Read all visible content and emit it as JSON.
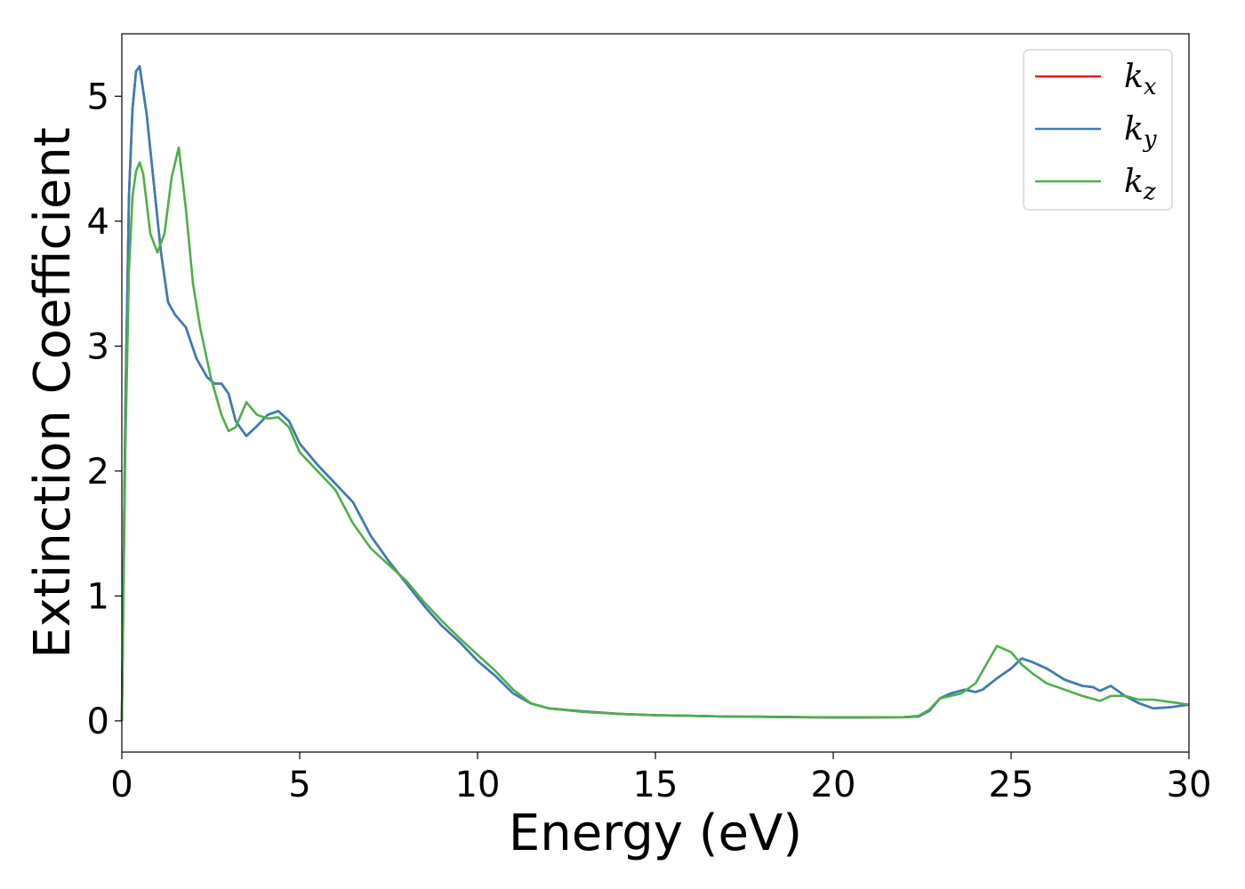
{
  "chart_data": {
    "type": "line",
    "xlabel": "Energy (eV)",
    "ylabel": "Extinction Coefficient",
    "xlim": [
      0,
      30
    ],
    "ylim": [
      -0.25,
      5.5
    ],
    "xticks": [
      0,
      5,
      10,
      15,
      20,
      25,
      30
    ],
    "yticks": [
      0,
      1,
      2,
      3,
      4,
      5
    ],
    "grid": false,
    "legend_position": "top-right",
    "series": [
      {
        "name": "k_x",
        "label_main": "k",
        "label_sub": "x",
        "color": "#e41a1c",
        "x": [
          0,
          0.1,
          0.2,
          0.3,
          0.4,
          0.5,
          0.7,
          0.9,
          1.1,
          1.3,
          1.5,
          1.8,
          2.1,
          2.4,
          2.6,
          2.8,
          3.0,
          3.2,
          3.5,
          3.8,
          4.1,
          4.4,
          4.7,
          5.0,
          5.5,
          6.0,
          6.5,
          7.0,
          7.5,
          8.0,
          8.5,
          9.0,
          9.5,
          10.0,
          10.5,
          11.0,
          11.5,
          12.0,
          13.0,
          14.0,
          15.0,
          16.0,
          17.0,
          18.0,
          19.0,
          20.0,
          21.0,
          22.0,
          22.4,
          22.7,
          23.0,
          23.3,
          23.7,
          24.0,
          24.2,
          24.6,
          25.0,
          25.3,
          25.6,
          26.0,
          26.5,
          27.0,
          27.3,
          27.5,
          27.8,
          28.2,
          28.6,
          29.0,
          29.5,
          30.0
        ],
        "y": [
          0,
          2.5,
          4.2,
          4.9,
          5.2,
          5.24,
          4.85,
          4.3,
          3.75,
          3.35,
          3.25,
          3.15,
          2.9,
          2.75,
          2.7,
          2.7,
          2.62,
          2.4,
          2.28,
          2.36,
          2.45,
          2.48,
          2.4,
          2.22,
          2.05,
          1.9,
          1.75,
          1.48,
          1.28,
          1.1,
          0.92,
          0.76,
          0.63,
          0.48,
          0.36,
          0.22,
          0.14,
          0.1,
          0.075,
          0.055,
          0.045,
          0.04,
          0.035,
          0.033,
          0.03,
          0.028,
          0.028,
          0.03,
          0.035,
          0.08,
          0.18,
          0.22,
          0.25,
          0.23,
          0.25,
          0.34,
          0.42,
          0.5,
          0.47,
          0.42,
          0.33,
          0.28,
          0.27,
          0.24,
          0.28,
          0.2,
          0.14,
          0.1,
          0.11,
          0.13
        ]
      },
      {
        "name": "k_y",
        "label_main": "k",
        "label_sub": "y",
        "color": "#377eb8",
        "x": [
          0,
          0.1,
          0.2,
          0.3,
          0.4,
          0.5,
          0.7,
          0.9,
          1.1,
          1.3,
          1.5,
          1.8,
          2.1,
          2.4,
          2.6,
          2.8,
          3.0,
          3.2,
          3.5,
          3.8,
          4.1,
          4.4,
          4.7,
          5.0,
          5.5,
          6.0,
          6.5,
          7.0,
          7.5,
          8.0,
          8.5,
          9.0,
          9.5,
          10.0,
          10.5,
          11.0,
          11.5,
          12.0,
          13.0,
          14.0,
          15.0,
          16.0,
          17.0,
          18.0,
          19.0,
          20.0,
          21.0,
          22.0,
          22.4,
          22.7,
          23.0,
          23.3,
          23.7,
          24.0,
          24.2,
          24.6,
          25.0,
          25.3,
          25.6,
          26.0,
          26.5,
          27.0,
          27.3,
          27.5,
          27.8,
          28.2,
          28.6,
          29.0,
          29.5,
          30.0
        ],
        "y": [
          0,
          2.5,
          4.2,
          4.9,
          5.2,
          5.24,
          4.85,
          4.3,
          3.75,
          3.35,
          3.25,
          3.15,
          2.9,
          2.75,
          2.7,
          2.7,
          2.62,
          2.4,
          2.28,
          2.36,
          2.45,
          2.48,
          2.4,
          2.22,
          2.05,
          1.9,
          1.75,
          1.48,
          1.28,
          1.1,
          0.92,
          0.76,
          0.63,
          0.48,
          0.36,
          0.22,
          0.14,
          0.1,
          0.075,
          0.055,
          0.045,
          0.04,
          0.035,
          0.033,
          0.03,
          0.028,
          0.028,
          0.03,
          0.035,
          0.08,
          0.18,
          0.22,
          0.25,
          0.23,
          0.25,
          0.34,
          0.42,
          0.5,
          0.47,
          0.42,
          0.33,
          0.28,
          0.27,
          0.24,
          0.28,
          0.2,
          0.14,
          0.1,
          0.11,
          0.13
        ]
      },
      {
        "name": "k_z",
        "label_main": "k",
        "label_sub": "z",
        "color": "#4daf4a",
        "x": [
          0,
          0.1,
          0.2,
          0.3,
          0.4,
          0.5,
          0.6,
          0.8,
          1.0,
          1.2,
          1.4,
          1.6,
          1.8,
          2.0,
          2.2,
          2.5,
          2.8,
          3.0,
          3.2,
          3.5,
          3.8,
          4.1,
          4.4,
          4.7,
          5.0,
          5.5,
          6.0,
          6.5,
          7.0,
          7.5,
          8.0,
          8.5,
          9.0,
          9.5,
          10.0,
          10.5,
          11.0,
          11.5,
          12.0,
          13.0,
          14.0,
          15.0,
          16.0,
          17.0,
          18.0,
          19.0,
          20.0,
          21.0,
          22.0,
          22.4,
          22.7,
          23.0,
          23.3,
          23.6,
          24.0,
          24.3,
          24.6,
          25.0,
          25.3,
          25.6,
          26.0,
          26.5,
          27.0,
          27.5,
          27.8,
          28.2,
          28.6,
          29.0,
          29.5,
          30.0
        ],
        "y": [
          0,
          2.2,
          3.6,
          4.2,
          4.4,
          4.47,
          4.38,
          3.9,
          3.75,
          3.9,
          4.35,
          4.59,
          4.1,
          3.5,
          3.15,
          2.75,
          2.45,
          2.32,
          2.35,
          2.55,
          2.45,
          2.42,
          2.43,
          2.35,
          2.15,
          2.0,
          1.85,
          1.58,
          1.38,
          1.25,
          1.12,
          0.95,
          0.8,
          0.66,
          0.53,
          0.4,
          0.25,
          0.14,
          0.1,
          0.07,
          0.055,
          0.045,
          0.04,
          0.035,
          0.032,
          0.03,
          0.028,
          0.028,
          0.03,
          0.04,
          0.09,
          0.18,
          0.2,
          0.22,
          0.3,
          0.45,
          0.6,
          0.55,
          0.45,
          0.38,
          0.3,
          0.25,
          0.2,
          0.16,
          0.2,
          0.2,
          0.17,
          0.17,
          0.15,
          0.13
        ]
      }
    ]
  }
}
